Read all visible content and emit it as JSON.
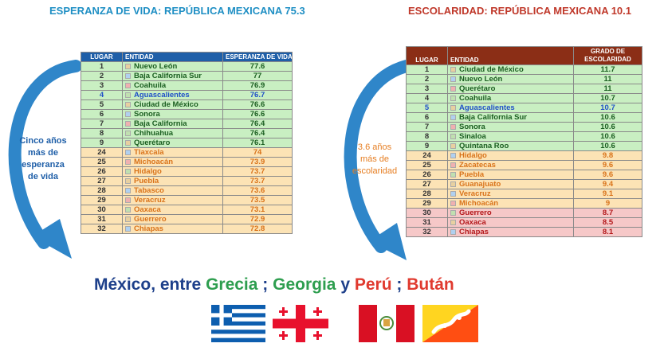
{
  "left": {
    "title": "ESPERANZA DE VIDA: REPÚBLICA MEXICANA 75.3",
    "headers": [
      "LUGAR",
      "ENTIDAD",
      "ESPERANZA DE VIDA"
    ],
    "rows": [
      {
        "rank": "1",
        "state": "Nuevo León",
        "value": "77.6",
        "band": "g"
      },
      {
        "rank": "2",
        "state": "Baja California Sur",
        "value": "77",
        "band": "g"
      },
      {
        "rank": "3",
        "state": "Coahuila",
        "value": "76.9",
        "band": "g"
      },
      {
        "rank": "4",
        "state": "Aguascalientes",
        "value": "76.7",
        "band": "g",
        "highlight": true
      },
      {
        "rank": "5",
        "state": "Ciudad de México",
        "value": "76.6",
        "band": "g"
      },
      {
        "rank": "6",
        "state": "Sonora",
        "value": "76.6",
        "band": "g"
      },
      {
        "rank": "7",
        "state": "Baja California",
        "value": "76.4",
        "band": "g"
      },
      {
        "rank": "8",
        "state": "Chihuahua",
        "value": "76.4",
        "band": "g"
      },
      {
        "rank": "9",
        "state": "Querétaro",
        "value": "76.1",
        "band": "g"
      },
      {
        "rank": "24",
        "state": "Tlaxcala",
        "value": "74",
        "band": "y"
      },
      {
        "rank": "25",
        "state": "Michoacán",
        "value": "73.9",
        "band": "y"
      },
      {
        "rank": "26",
        "state": "Hidalgo",
        "value": "73.7",
        "band": "y"
      },
      {
        "rank": "27",
        "state": "Puebla",
        "value": "73.7",
        "band": "y"
      },
      {
        "rank": "28",
        "state": "Tabasco",
        "value": "73.6",
        "band": "y"
      },
      {
        "rank": "29",
        "state": "Veracruz",
        "value": "73.5",
        "band": "y"
      },
      {
        "rank": "30",
        "state": "Oaxaca",
        "value": "73.1",
        "band": "y"
      },
      {
        "rank": "31",
        "state": "Guerrero",
        "value": "72.9",
        "band": "y"
      },
      {
        "rank": "32",
        "state": "Chiapas",
        "value": "72.8",
        "band": "y"
      }
    ],
    "arrow_text": [
      "Cinco años",
      "más de",
      "esperanza",
      "de vida"
    ]
  },
  "right": {
    "title": "ESCOLARIDAD: REPÚBLICA MEXICANA 10.1",
    "headers": [
      "LUGAR",
      "ENTIDAD",
      "GRADO DE",
      "ESCOLARIDAD"
    ],
    "rows": [
      {
        "rank": "1",
        "state": "Ciudad de México",
        "value": "11.7",
        "band": "g"
      },
      {
        "rank": "2",
        "state": "Nuevo León",
        "value": "11",
        "band": "g"
      },
      {
        "rank": "3",
        "state": "Querétaro",
        "value": "11",
        "band": "g"
      },
      {
        "rank": "4",
        "state": "Coahuila",
        "value": "10.7",
        "band": "g"
      },
      {
        "rank": "5",
        "state": "Aguascalientes",
        "value": "10.7",
        "band": "g",
        "highlight": true
      },
      {
        "rank": "6",
        "state": "Baja California Sur",
        "value": "10.6",
        "band": "g"
      },
      {
        "rank": "7",
        "state": "Sonora",
        "value": "10.6",
        "band": "g"
      },
      {
        "rank": "8",
        "state": "Sinaloa",
        "value": "10.6",
        "band": "g"
      },
      {
        "rank": "9",
        "state": "Quintana Roo",
        "value": "10.6",
        "band": "g"
      },
      {
        "rank": "24",
        "state": "Hidalgo",
        "value": "9.8",
        "band": "y"
      },
      {
        "rank": "25",
        "state": "Zacatecas",
        "value": "9.6",
        "band": "y"
      },
      {
        "rank": "26",
        "state": "Puebla",
        "value": "9.6",
        "band": "y"
      },
      {
        "rank": "27",
        "state": "Guanajuato",
        "value": "9.4",
        "band": "y"
      },
      {
        "rank": "28",
        "state": "Veracruz",
        "value": "9.1",
        "band": "y"
      },
      {
        "rank": "29",
        "state": "Michoacán",
        "value": "9",
        "band": "y"
      },
      {
        "rank": "30",
        "state": "Guerrero",
        "value": "8.7",
        "band": "r"
      },
      {
        "rank": "31",
        "state": "Oaxaca",
        "value": "8.5",
        "band": "r"
      },
      {
        "rank": "32",
        "state": "Chiapas",
        "value": "8.1",
        "band": "r"
      }
    ],
    "arrow_text": [
      "3.6 años",
      "más de",
      "escolaridad"
    ]
  },
  "headline": {
    "part1": "México, entre ",
    "grecia": "Grecia",
    "sep1": " ; ",
    "georgia": "Georgia",
    "y": " y ",
    "peru": "Perú",
    "sep2": " ; ",
    "butan": "Bután"
  },
  "flags": [
    "greece-flag",
    "georgia-flag",
    "peru-flag",
    "bhutan-flag"
  ],
  "colors": {
    "left_title": "#1f8fc4",
    "right_title": "#c0392b",
    "grecia": "#2e9e4f",
    "georgia": "#2e9e4f",
    "peru": "#e03a2f",
    "butan": "#e03a2f",
    "headline_base": "#1d3f8a",
    "arrow": "#2f86c9"
  }
}
